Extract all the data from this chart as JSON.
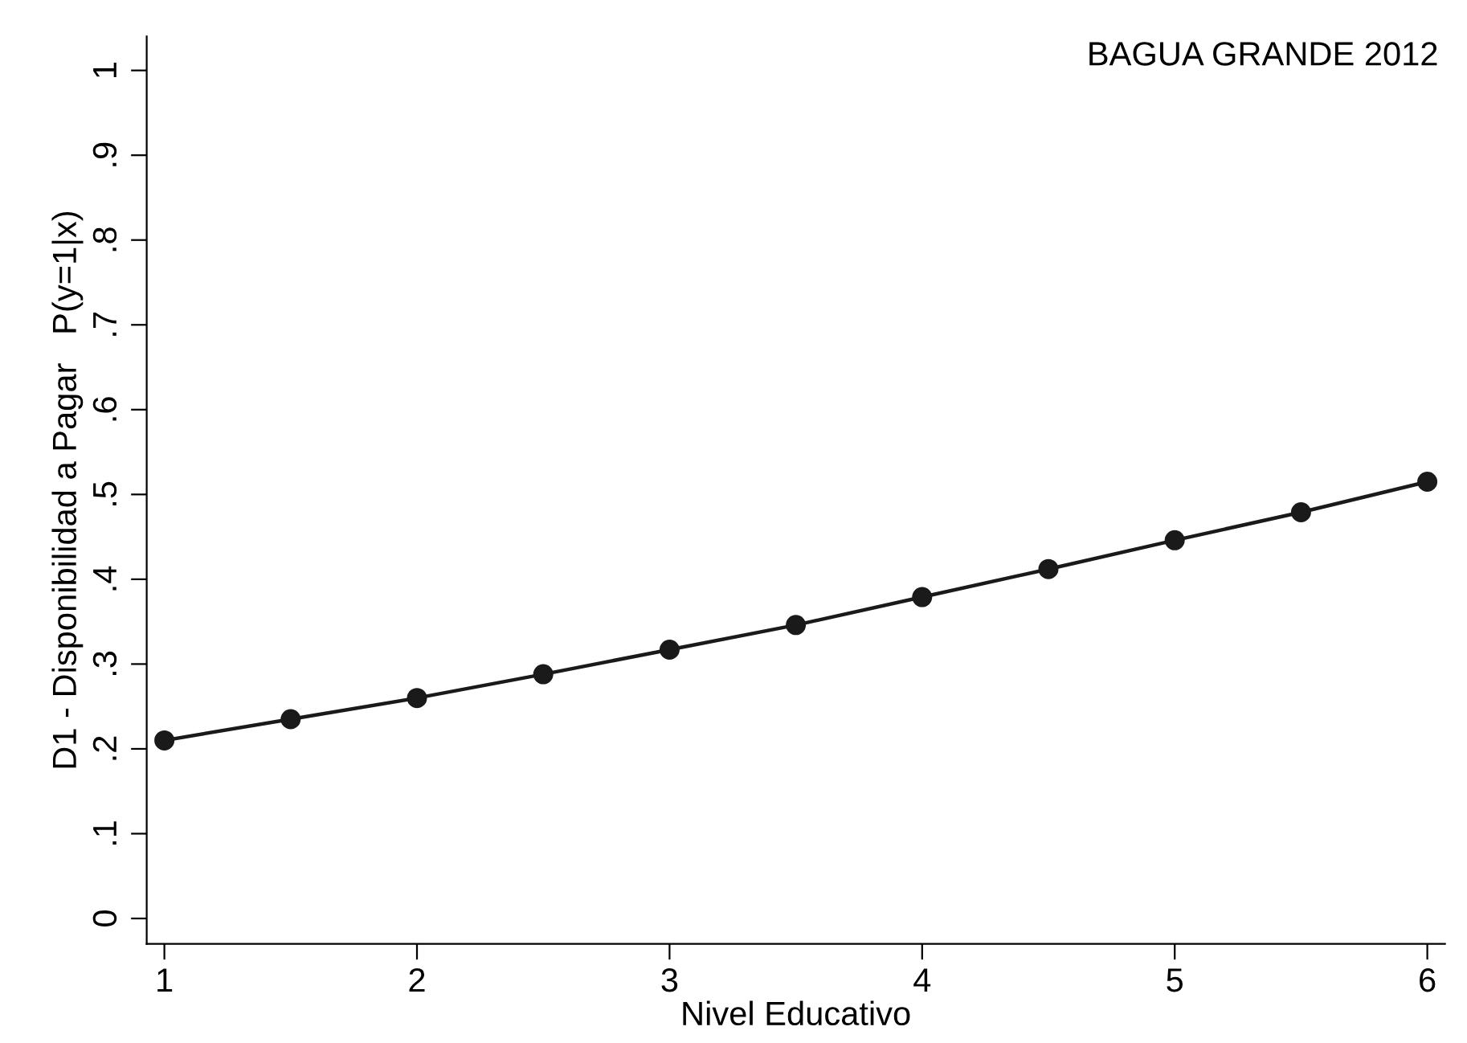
{
  "chart_data": {
    "type": "line",
    "annotations": [
      "BAGUA GRANDE 2012"
    ],
    "xlabel": "Nivel Educativo",
    "ylabel": "D1 - Disponibilidad a Pagar   P(y=1|x)",
    "x": [
      1,
      1.5,
      2,
      2.5,
      3,
      3.5,
      4,
      4.5,
      5,
      5.5,
      6
    ],
    "series": [
      {
        "color": "#1a1a1a",
        "values": [
          0.21,
          0.235,
          0.26,
          0.288,
          0.317,
          0.346,
          0.379,
          0.412,
          0.446,
          0.479,
          0.515
        ]
      }
    ],
    "marker": "circle",
    "line_style": "solid",
    "grid": false,
    "legend": false,
    "xlim": [
      0.93,
      6.07
    ],
    "ylim": [
      -0.03,
      1.04
    ],
    "xticks": [
      1,
      2,
      3,
      4,
      5,
      6
    ],
    "yticks": [
      {
        "value": 0,
        "label": "0"
      },
      {
        "value": 0.1,
        "label": ".1"
      },
      {
        "value": 0.2,
        "label": ".2"
      },
      {
        "value": 0.3,
        "label": ".3"
      },
      {
        "value": 0.4,
        "label": ".4"
      },
      {
        "value": 0.5,
        "label": ".5"
      },
      {
        "value": 0.6,
        "label": ".6"
      },
      {
        "value": 0.7,
        "label": ".7"
      },
      {
        "value": 0.8,
        "label": ".8"
      },
      {
        "value": 0.9,
        "label": ".9"
      },
      {
        "value": 1,
        "label": "1"
      }
    ]
  }
}
